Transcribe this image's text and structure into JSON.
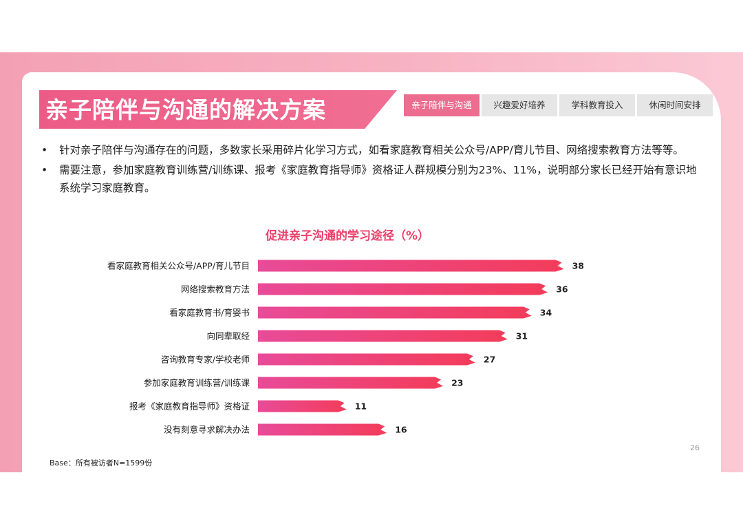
{
  "header": {
    "title": "亲子陪伴与沟通的解决方案",
    "tabs": [
      {
        "label": "亲子陪伴与沟通",
        "active": true
      },
      {
        "label": "兴趣爱好培养",
        "active": false
      },
      {
        "label": "学科教育投入",
        "active": false
      },
      {
        "label": "休闲时间安排",
        "active": false
      }
    ]
  },
  "bullets": [
    {
      "symbol": "•",
      "text": "针对亲子陪伴与沟通存在的问题，多数家长采用碎片化学习方式，如看家庭教育相关公众号/APP/育儿节目、网络搜索教育方法等等。"
    },
    {
      "symbol": "•",
      "text": "需要注意，参加家庭教育训练营/训练课、报考《家庭教育指导师》资格证人群规模分别为23%、11%，说明部分家长已经开始有意识地系统学习家庭教育。"
    }
  ],
  "chart_data": {
    "type": "bar",
    "orientation": "horizontal",
    "title": "促进亲子沟通的学习途径（%）",
    "categories": [
      "看家庭教育相关公众号/APP/育儿节目",
      "网络搜索教育方法",
      "看家庭教育书/育婴书",
      "向同辈取经",
      "咨询教育专家/学校老师",
      "参加家庭教育训练营/训练课",
      "报考《家庭教育指导师》资格证",
      "没有刻意寻求解决办法"
    ],
    "values": [
      38,
      36,
      34,
      31,
      27,
      23,
      11,
      16
    ],
    "xlim": [
      0,
      40
    ],
    "grid": false,
    "legend": "none",
    "data_labels": true,
    "colors": {
      "bar_start": "#e84b98",
      "bar_end": "#f33c5a"
    }
  },
  "footer": {
    "page_number": "26",
    "base_note": "Base：所有被访者N=1599份"
  },
  "colors": {
    "accent": "#ec5b86",
    "band": "#f4a0b4",
    "title_text": "#ec3f6a"
  }
}
